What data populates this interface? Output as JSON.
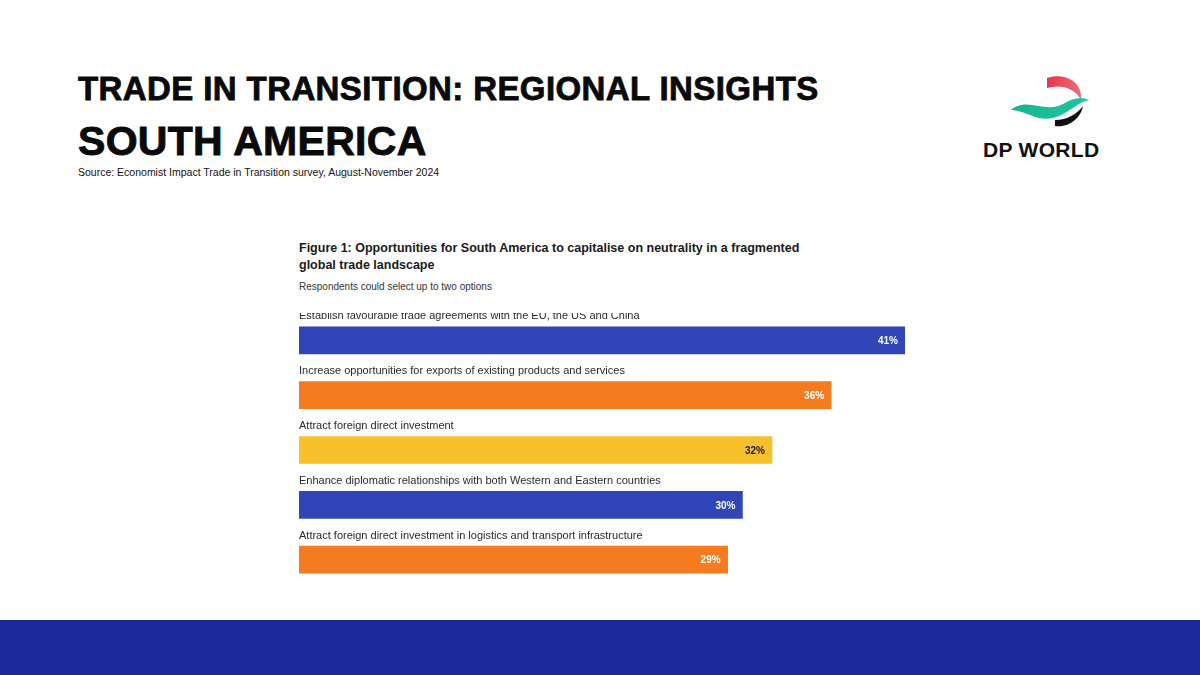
{
  "header": {
    "title": "TRADE IN TRANSITION: REGIONAL INSIGHTS",
    "subtitle": "SOUTH AMERICA",
    "source": "Source: Economist Impact Trade in Transition survey, August-November 2024",
    "logo_text": "DP WORLD"
  },
  "chart_data": {
    "type": "bar",
    "orientation": "horizontal",
    "title": "Figure 1: Opportunities for South America to capitalise on neutrality in a fragmented global trade landscape",
    "subtitle": "Respondents could select up to two options",
    "categories": [
      "Establish favourable trade agreements with the EU, the US and China",
      "Increase opportunities for exports of existing products and services",
      "Attract foreign direct investment",
      "Enhance diplomatic relationships with both Western and Eastern countries",
      "Attract foreign direct investment in logistics and transport infrastructure"
    ],
    "values": [
      41,
      36,
      32,
      30,
      29
    ],
    "value_labels": [
      "41%",
      "36%",
      "32%",
      "30%",
      "29%"
    ],
    "colors": [
      "#2f45b8",
      "#f47b20",
      "#f6c12a",
      "#2f45b8",
      "#f47b20"
    ],
    "xlim": [
      0,
      41
    ],
    "grid": false,
    "data_labels": true,
    "tick_labels": false
  }
}
